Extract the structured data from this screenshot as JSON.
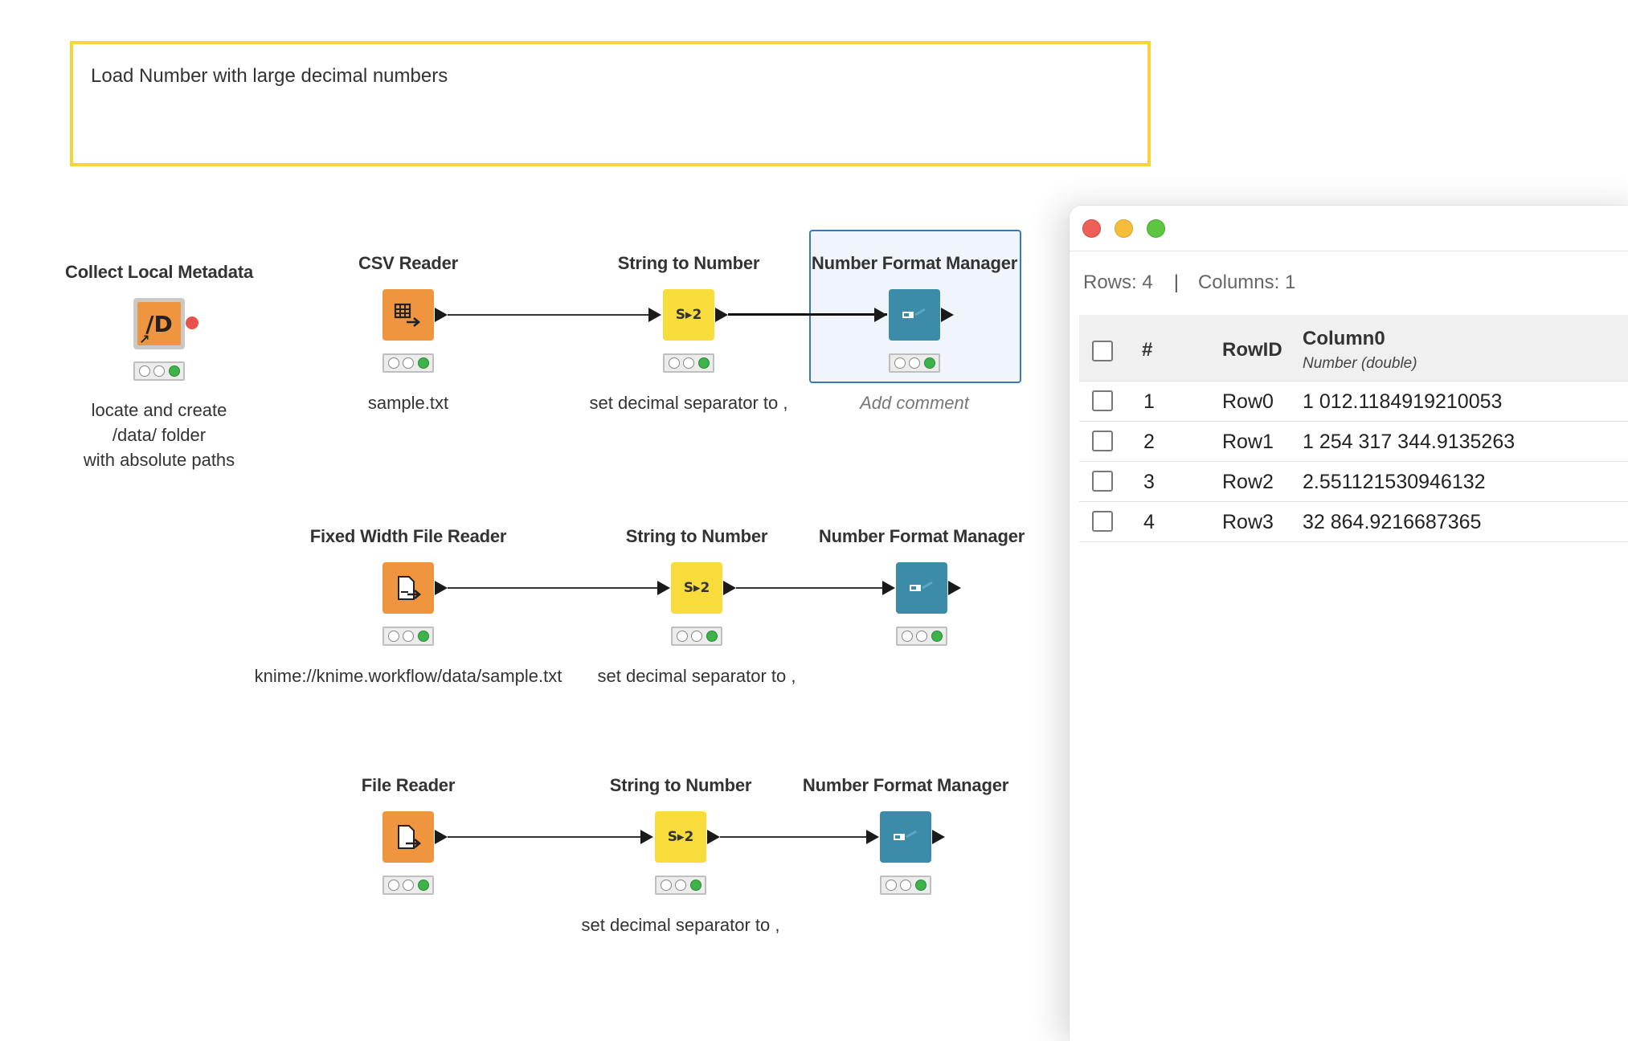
{
  "annotation": {
    "text": "Load Number with large decimal numbers"
  },
  "nodes": {
    "collect_metadata": {
      "title": "Collect Local Metadata",
      "comment_lines": [
        "locate and create",
        "/data/ folder",
        "with absolute paths"
      ]
    },
    "csv_reader": {
      "title": "CSV Reader",
      "comment": "sample.txt"
    },
    "string_to_number_1": {
      "title": "String to Number",
      "comment": "set decimal separator to ,"
    },
    "number_format_1": {
      "title": "Number Format Manager",
      "comment": "Add comment"
    },
    "fixed_width_reader": {
      "title": "Fixed Width File Reader",
      "comment": "knime://knime.workflow/data/sample.txt"
    },
    "string_to_number_2": {
      "title": "String to Number",
      "comment": "set decimal separator to ,"
    },
    "number_format_2": {
      "title": "Number Format Manager"
    },
    "file_reader": {
      "title": "File Reader"
    },
    "string_to_number_3": {
      "title": "String to Number",
      "comment": "set decimal separator to ,"
    },
    "number_format_3": {
      "title": "Number Format Manager"
    }
  },
  "icons": {
    "collect_metadata": "/D",
    "string_to_number": "S▸2"
  },
  "colors": {
    "annotation_border": "#f7d43a",
    "reader_node": "#f0953f",
    "manipulator_node": "#f8dc3c",
    "format_node": "#3c8ba8",
    "status_green": "#3db34a",
    "warning": "#e9524a",
    "selection": "#3b78b5"
  },
  "table_window": {
    "rows_label": "Rows: 4",
    "separator": "|",
    "columns_label": "Columns: 1",
    "headers": {
      "index": "#",
      "rowid": "RowID",
      "column": "Column0",
      "column_type": "Number (double)"
    },
    "rows": [
      {
        "index": "1",
        "rowid": "Row0",
        "value": "1 012.1184919210053"
      },
      {
        "index": "2",
        "rowid": "Row1",
        "value": "1 254 317 344.9135263"
      },
      {
        "index": "3",
        "rowid": "Row2",
        "value": "2.551121530946132"
      },
      {
        "index": "4",
        "rowid": "Row3",
        "value": "32 864.9216687365"
      }
    ]
  }
}
